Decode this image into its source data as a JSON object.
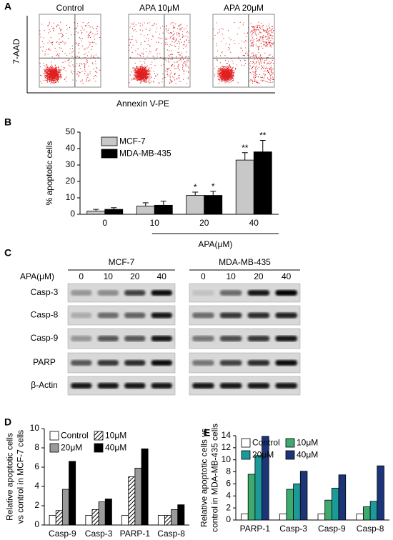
{
  "panel_labels": [
    "A",
    "B",
    "C",
    "D",
    "E"
  ],
  "flow_panel": {
    "titles": [
      "Control",
      "APA 10μM",
      "APA 20μM"
    ],
    "ylabel": "7-AAD",
    "xlabel": "Annexin V-PE"
  },
  "blot_panel": {
    "groups": [
      "MCF-7",
      "MDA-MB-435"
    ],
    "lane_label": "APA(μM)",
    "lanes": [
      "0",
      "10",
      "20",
      "40"
    ],
    "rows": [
      "Casp-3",
      "Casp-8",
      "Casp-9",
      "PARP",
      "β-Actin"
    ]
  },
  "chart_data": [
    {
      "type": "bar",
      "categories": [
        "0",
        "10",
        "20",
        "40"
      ],
      "ylabel": [
        "% apoptotic cells"
      ],
      "xlabel": "APA(μM)",
      "ylim": [
        0,
        50
      ],
      "yticks": [
        0,
        10,
        20,
        30,
        40,
        50
      ],
      "legend_columns": 1,
      "series": [
        {
          "name": "MCF-7",
          "color": "#c8c8c8",
          "values": [
            2,
            5,
            11.5,
            33
          ],
          "errors": [
            1,
            2,
            2,
            4.5
          ],
          "annotations": [
            null,
            null,
            "*",
            "**"
          ]
        },
        {
          "name": "MDA-MB-435",
          "color": "#000000",
          "values": [
            3,
            5.5,
            11.5,
            38
          ],
          "errors": [
            1,
            2.5,
            2.5,
            7
          ],
          "annotations": [
            null,
            null,
            "*",
            "**"
          ]
        }
      ]
    },
    {
      "type": "bar",
      "categories": [
        "Casp-9",
        "Casp-3",
        "PARP-1",
        "Casp-8"
      ],
      "ylabel": [
        "Relative apoptotic cells",
        "vs control in MCF-7 cells"
      ],
      "ylim": [
        0,
        10
      ],
      "yticks": [
        0,
        2,
        4,
        6,
        8,
        10
      ],
      "legend_columns": 2,
      "series": [
        {
          "name": "Control",
          "color": "#ffffff",
          "values": [
            1,
            1,
            1,
            1
          ]
        },
        {
          "name": "10μM",
          "color": "#ffffff",
          "hatch": true,
          "values": [
            1.5,
            1.6,
            5.0,
            1.0
          ]
        },
        {
          "name": "20μM",
          "color": "#9a9a9a",
          "values": [
            3.7,
            2.4,
            5.9,
            1.6
          ]
        },
        {
          "name": "40μM",
          "color": "#000000",
          "values": [
            6.6,
            2.7,
            7.9,
            2.1
          ]
        }
      ]
    },
    {
      "type": "bar",
      "categories": [
        "PARP-1",
        "Casp-3",
        "Casp-9",
        "Casp-8"
      ],
      "ylabel": [
        "Relative apoptotic cells vs",
        "control in MDA-MB-435 cells"
      ],
      "ylim": [
        0,
        14
      ],
      "yticks": [
        0,
        2,
        4,
        6,
        8,
        10,
        12,
        14
      ],
      "legend_columns": 2,
      "series": [
        {
          "name": "Control",
          "color": "#ffffff",
          "values": [
            1,
            1,
            1,
            1
          ]
        },
        {
          "name": "10μM",
          "color": "#3daa6e",
          "values": [
            7.6,
            5.1,
            3.3,
            2.2
          ]
        },
        {
          "name": "20μM",
          "color": "#1c9a9a",
          "values": [
            10.7,
            6.0,
            5.3,
            3.1
          ]
        },
        {
          "name": "40μM",
          "color": "#1c3578",
          "values": [
            13.9,
            8.1,
            7.5,
            9.0
          ]
        }
      ]
    }
  ]
}
